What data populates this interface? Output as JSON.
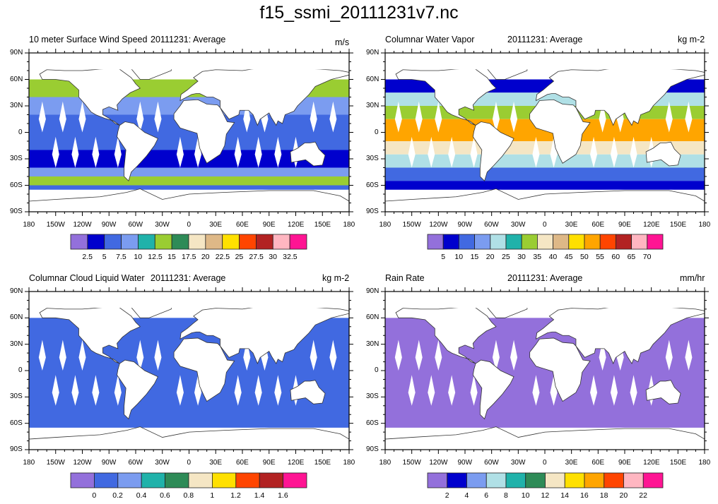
{
  "title": "f15_ssmi_20111231v7.nc",
  "chart_data": [
    {
      "type": "heatmap",
      "title": "10 meter Surface Wind Speed",
      "center_title": "20111231: Average",
      "units": "m/s",
      "xlabel": "",
      "ylabel": "",
      "xlim": [
        -180,
        180
      ],
      "ylim": [
        -90,
        90
      ],
      "xticks": [
        "180",
        "150W",
        "120W",
        "90W",
        "60W",
        "30W",
        "0",
        "30E",
        "60E",
        "90E",
        "120E",
        "150E",
        "180"
      ],
      "yticks": [
        "90N",
        "60N",
        "30N",
        "0",
        "30S",
        "60S",
        "90S"
      ],
      "colorbar": {
        "labels": [
          "2.5",
          "5",
          "7.5",
          "10",
          "12.5",
          "15",
          "17.5",
          "20",
          "22.5",
          "25",
          "27.5",
          "30",
          "32.5"
        ],
        "colors": [
          "#9370DB",
          "#0000CD",
          "#4169E1",
          "#7B9CF0",
          "#20B2AA",
          "#9ACD32",
          "#2E8B57",
          "#F5E6C4",
          "#DEB887",
          "#FFE000",
          "#FF4500",
          "#B22222",
          "#FFB6C1",
          "#FF1493"
        ]
      },
      "description": "Ocean wind speed mostly 5-12.5 m/s; higher (15-25) in N Atlantic, N Pacific and Southern Ocean storm tracks; white diamond swath gaps and land masked."
    },
    {
      "type": "heatmap",
      "title": "Columnar Water Vapor",
      "center_title": "20111231: Average",
      "units": "kg m-2",
      "xlim": [
        -180,
        180
      ],
      "ylim": [
        -90,
        90
      ],
      "xticks": [
        "180",
        "150W",
        "120W",
        "90W",
        "60W",
        "30W",
        "0",
        "30E",
        "60E",
        "90E",
        "120E",
        "150E",
        "180"
      ],
      "yticks": [
        "90N",
        "60N",
        "30N",
        "0",
        "30S",
        "60S",
        "90S"
      ],
      "colorbar": {
        "labels": [
          "5",
          "10",
          "15",
          "20",
          "25",
          "30",
          "35",
          "40",
          "45",
          "50",
          "55",
          "60",
          "65",
          "70"
        ],
        "colors": [
          "#9370DB",
          "#0000CD",
          "#4169E1",
          "#7B9CF0",
          "#B0E0E6",
          "#20B2AA",
          "#9ACD32",
          "#F5E6C4",
          "#DEB887",
          "#FFE000",
          "#FFA500",
          "#FF4500",
          "#B22222",
          "#FFB6C1",
          "#FF1493"
        ]
      },
      "description": "Values 40-65 kg m-2 in the tropics, decreasing to 5-15 at high latitudes."
    },
    {
      "type": "heatmap",
      "title": "Columnar Cloud Liquid Water",
      "center_title": "20111231: Average",
      "units": "kg m-2",
      "xlim": [
        -180,
        180
      ],
      "ylim": [
        -90,
        90
      ],
      "xticks": [
        "180",
        "150W",
        "120W",
        "90W",
        "60W",
        "30W",
        "0",
        "30E",
        "60E",
        "90E",
        "120E",
        "150E",
        "180"
      ],
      "yticks": [
        "90N",
        "60N",
        "30N",
        "0",
        "30S",
        "60S",
        "90S"
      ],
      "colorbar": {
        "labels": [
          "0",
          "0.2",
          "0.4",
          "0.6",
          "0.8",
          "1",
          "1.2",
          "1.4",
          "1.6"
        ],
        "colors": [
          "#9370DB",
          "#4169E1",
          "#7B9CF0",
          "#20B2AA",
          "#2E8B57",
          "#F5E6C4",
          "#FFE000",
          "#FF4500",
          "#B22222",
          "#FF1493"
        ]
      },
      "description": "Mostly 0-0.2 kg m-2 over oceans with scattered higher values."
    },
    {
      "type": "heatmap",
      "title": "Rain Rate",
      "center_title": "20111231: Average",
      "units": "mm/hr",
      "xlim": [
        -180,
        180
      ],
      "ylim": [
        -90,
        90
      ],
      "xticks": [
        "180",
        "150W",
        "120W",
        "90W",
        "60W",
        "30W",
        "0",
        "30E",
        "60E",
        "90E",
        "120E",
        "150E",
        "180"
      ],
      "yticks": [
        "90N",
        "60N",
        "30N",
        "0",
        "30S",
        "60S",
        "90S"
      ],
      "colorbar": {
        "labels": [
          "2",
          "4",
          "6",
          "8",
          "10",
          "12",
          "14",
          "16",
          "18",
          "20",
          "22"
        ],
        "colors": [
          "#9370DB",
          "#0000CD",
          "#7B9CF0",
          "#B0E0E6",
          "#20B2AA",
          "#2E8B57",
          "#F5E6C4",
          "#FFE000",
          "#FFA500",
          "#FF4500",
          "#FFB6C1",
          "#FF1493"
        ]
      },
      "description": "Almost entirely below 2 mm/hr, with isolated 2-4 mm/hr spots."
    }
  ]
}
